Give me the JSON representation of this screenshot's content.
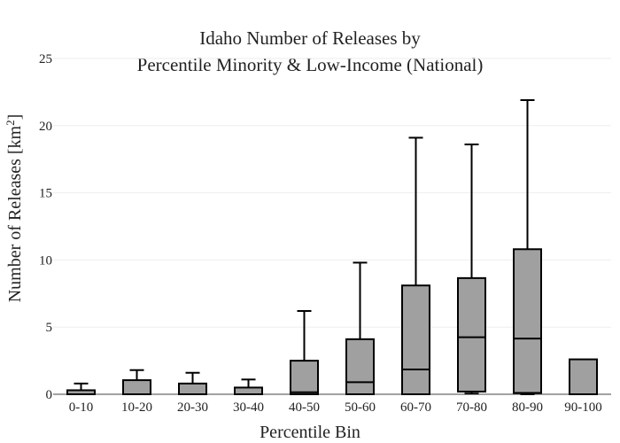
{
  "chart_data": {
    "type": "box",
    "title": [
      "Idaho Number of Releases by",
      "Percentile Minority & Low-Income (National)"
    ],
    "xlabel": "Percentile Bin",
    "ylabel_prefix": "Number of Releases  [km",
    "ylabel_sup": "2",
    "ylabel_suffix": "]",
    "ylim": [
      0,
      25
    ],
    "yticks": [
      0,
      5,
      10,
      15,
      20,
      25
    ],
    "grid": true,
    "colors": {
      "box_fill": "#a0a0a0",
      "box_stroke": "#000000",
      "grid": "#eeeeee"
    },
    "categories": [
      "0-10",
      "10-20",
      "20-30",
      "30-40",
      "40-50",
      "50-60",
      "60-70",
      "70-80",
      "80-90",
      "90-100"
    ],
    "boxes": [
      {
        "lower": 0,
        "q1": 0,
        "median": 0,
        "q3": 0.3,
        "upper": 0.8
      },
      {
        "lower": 0,
        "q1": 0,
        "median": 0,
        "q3": 1.05,
        "upper": 1.8
      },
      {
        "lower": 0,
        "q1": 0,
        "median": 0,
        "q3": 0.8,
        "upper": 1.6
      },
      {
        "lower": 0,
        "q1": 0,
        "median": 0,
        "q3": 0.5,
        "upper": 1.1
      },
      {
        "lower": 0,
        "q1": 0,
        "median": 0.15,
        "q3": 2.5,
        "upper": 6.2
      },
      {
        "lower": 0,
        "q1": 0,
        "median": 0.9,
        "q3": 4.1,
        "upper": 9.8
      },
      {
        "lower": 0,
        "q1": 0,
        "median": 1.85,
        "q3": 8.1,
        "upper": 19.1
      },
      {
        "lower": 0.05,
        "q1": 0.2,
        "median": 4.25,
        "q3": 8.65,
        "upper": 18.6
      },
      {
        "lower": 0,
        "q1": 0.1,
        "median": 4.15,
        "q3": 10.8,
        "upper": 21.9
      },
      {
        "lower": 0,
        "q1": 0,
        "median": 0,
        "q3": 2.6,
        "upper": 2.6
      }
    ]
  }
}
